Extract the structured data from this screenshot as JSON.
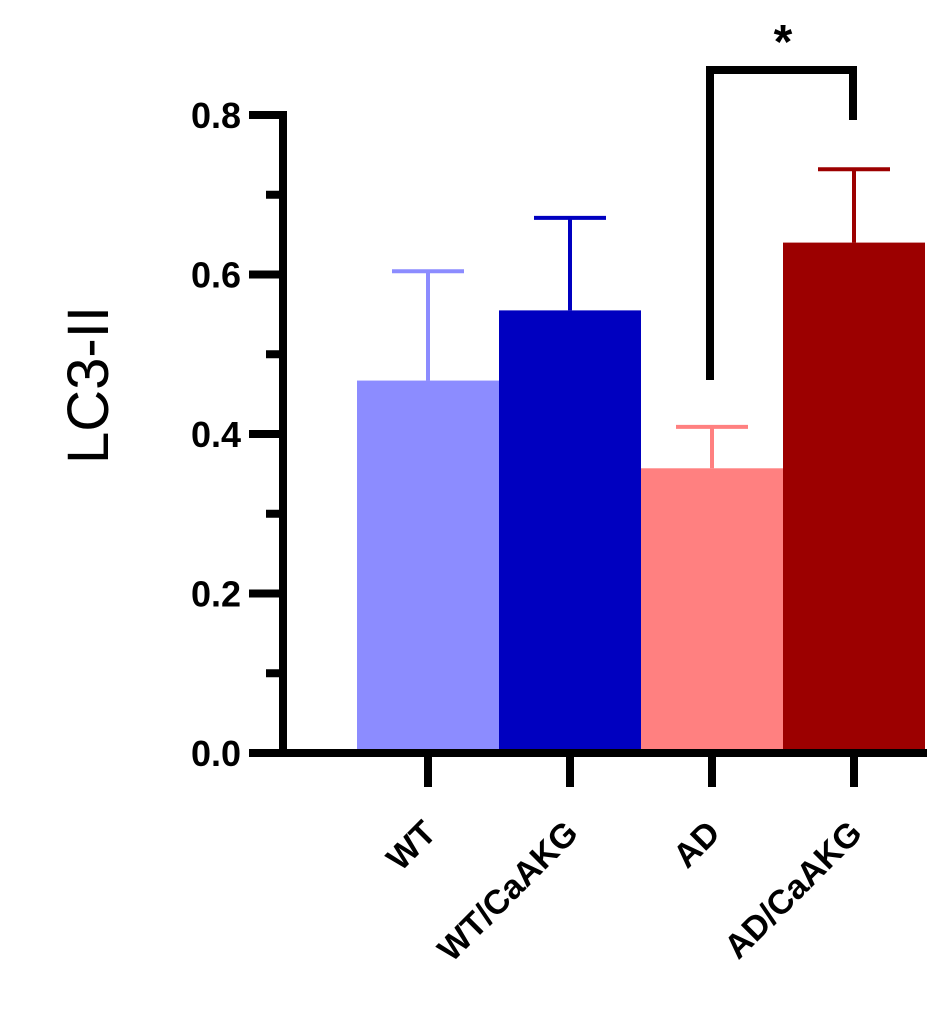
{
  "chart_data": {
    "type": "bar",
    "title": "",
    "xlabel": "",
    "ylabel": "LC3-II",
    "ylim": [
      0,
      0.8
    ],
    "yticks": [
      "0.0",
      "0.2",
      "0.4",
      "0.6",
      "0.8"
    ],
    "ytick_values": [
      0,
      0.2,
      0.4,
      0.6,
      0.8
    ],
    "categories": [
      "WT",
      "WT/CaAKG",
      "AD",
      "AD/CaAKG"
    ],
    "values": [
      0.467,
      0.555,
      0.357,
      0.64
    ],
    "error_upper": [
      0.604,
      0.671,
      0.409,
      0.732
    ],
    "colors": [
      "#8c8cff",
      "#0000c0",
      "#ff8080",
      "#9c0000"
    ],
    "grid": false,
    "annotations": [
      {
        "text": "*",
        "between": [
          "AD",
          "AD/CaAKG"
        ]
      }
    ]
  }
}
